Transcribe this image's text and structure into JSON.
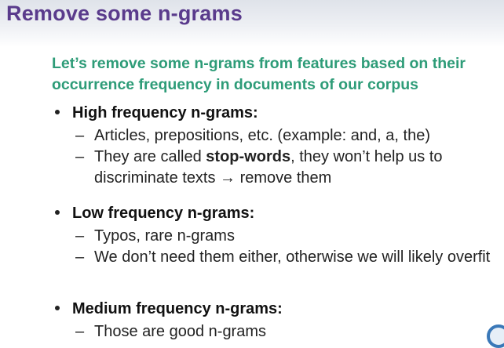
{
  "title": "Remove some n-grams",
  "subtitle": "Let’s remove some n-grams from features based on their occurrence frequency in documents of our corpus",
  "bullets": [
    {
      "heading": "High frequency n-grams:",
      "items": [
        {
          "text": "Articles, prepositions, etc. (example: and, a, the)"
        },
        {
          "pre": "They are called ",
          "bold": "stop-words",
          "post": ", they won’t help us to discriminate texts → remove them"
        }
      ]
    },
    {
      "heading": "Low frequency n-grams:",
      "items": [
        {
          "text": "Typos, rare n-grams"
        },
        {
          "text": "We don’t need them either, otherwise we will likely overfit"
        }
      ]
    },
    {
      "heading": "Medium frequency n-grams:",
      "items": [
        {
          "text": "Those are good n-grams"
        }
      ]
    }
  ],
  "dash": "–",
  "colors": {
    "title": "#5a3b8c",
    "subtitle": "#2e9c78"
  }
}
